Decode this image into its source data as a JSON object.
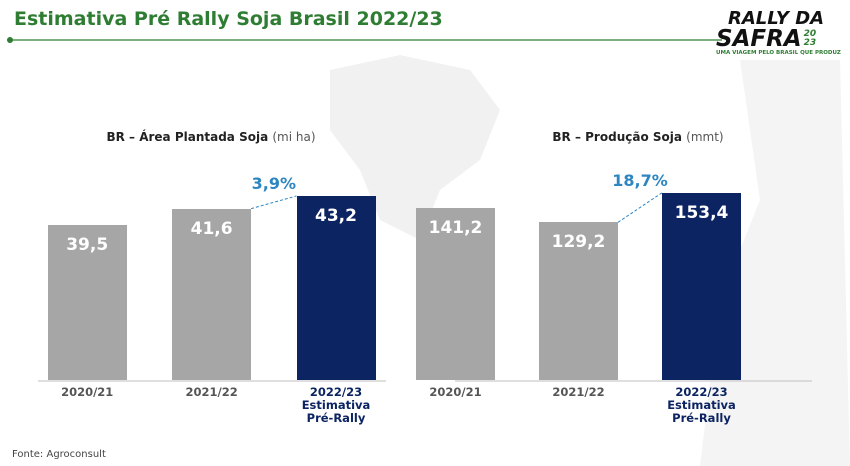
{
  "title": "Estimativa Pré Rally Soja Brasil 2022/23",
  "source": "Fonte: Agroconsult",
  "logo": {
    "line1": "RALLY DA",
    "line2": "SAFRA",
    "year_top": "20",
    "year_bottom": "23",
    "tagline": "UMA VIAGEM PELO BRASIL QUE PRODUZ"
  },
  "chart_data": [
    {
      "type": "bar",
      "title": "BR – Área Plantada Soja",
      "unit": "(mi ha)",
      "categories": [
        "2020/21",
        "2021/22",
        "2022/23\nEstimativa\nPré-Rally"
      ],
      "values": [
        39.5,
        41.6,
        43.2
      ],
      "value_labels": [
        "39,5",
        "41,6",
        "43,2"
      ],
      "colors": [
        "#a6a6a6",
        "#a6a6a6",
        "#0c2461"
      ],
      "annotation": "3,9%",
      "ylim": [
        20,
        50
      ]
    },
    {
      "type": "bar",
      "title": "BR – Produção Soja",
      "unit": "(mmt)",
      "categories": [
        "2020/21",
        "2021/22",
        "2022/23\nEstimativa\nPré-Rally"
      ],
      "values": [
        141.2,
        129.2,
        153.4
      ],
      "value_labels": [
        "141,2",
        "129,2",
        "153,4"
      ],
      "colors": [
        "#a6a6a6",
        "#a6a6a6",
        "#0c2461"
      ],
      "annotation": "18,7%",
      "ylim": [
        0,
        195
      ]
    }
  ]
}
